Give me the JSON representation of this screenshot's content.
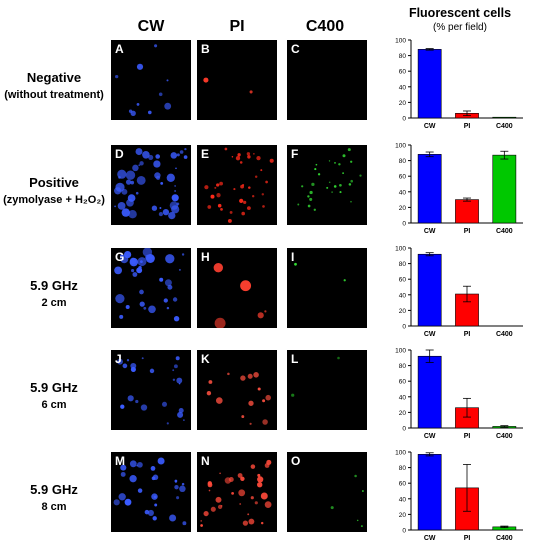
{
  "columns": {
    "cw": "CW",
    "pi": "PI",
    "c400": "C400"
  },
  "fluorescent_title": "Fluorescent cells",
  "fluorescent_subtitle": "(% per field)",
  "rows": [
    {
      "label1": "Negative",
      "label2": "(without treatment)",
      "panels": [
        "A",
        "B",
        "C"
      ]
    },
    {
      "label1": "Positive",
      "label2": "(zymolyase + H₂O₂)",
      "panels": [
        "D",
        "E",
        "F"
      ]
    },
    {
      "label1": "5.9 GHz",
      "label2": "2 cm",
      "panels": [
        "G",
        "H",
        "I"
      ]
    },
    {
      "label1": "5.9 GHz",
      "label2": "6 cm",
      "panels": [
        "J",
        "K",
        "L"
      ]
    },
    {
      "label1": "5.9 GHz",
      "label2": "8 cm",
      "panels": [
        "M",
        "N",
        "O"
      ]
    }
  ],
  "colors": {
    "cw": "#0000ff",
    "pi": "#ff0000",
    "c400": "#00c800"
  },
  "chart_data": [
    {
      "type": "bar",
      "categories": [
        "CW",
        "PI",
        "C400"
      ],
      "values": [
        88,
        6,
        1
      ],
      "errors": [
        1,
        3,
        0
      ],
      "ylim": [
        0,
        100
      ],
      "yticks": [
        0,
        20,
        40,
        60,
        80,
        100
      ]
    },
    {
      "type": "bar",
      "categories": [
        "CW",
        "PI",
        "C400"
      ],
      "values": [
        88,
        30,
        87
      ],
      "errors": [
        3,
        2,
        5
      ],
      "ylim": [
        0,
        100
      ],
      "yticks": [
        0,
        20,
        40,
        60,
        80,
        100
      ]
    },
    {
      "type": "bar",
      "categories": [
        "CW",
        "PI",
        "C400"
      ],
      "values": [
        92,
        41,
        0
      ],
      "errors": [
        2,
        10,
        0
      ],
      "ylim": [
        0,
        100
      ],
      "yticks": [
        0,
        20,
        40,
        60,
        80,
        100
      ]
    },
    {
      "type": "bar",
      "categories": [
        "CW",
        "PI",
        "C400"
      ],
      "values": [
        92,
        26,
        2
      ],
      "errors": [
        8,
        12,
        1
      ],
      "ylim": [
        0,
        100
      ],
      "yticks": [
        0,
        20,
        40,
        60,
        80,
        100
      ]
    },
    {
      "type": "bar",
      "categories": [
        "CW",
        "PI",
        "C400"
      ],
      "values": [
        97,
        54,
        4
      ],
      "errors": [
        2,
        30,
        1
      ],
      "ylim": [
        0,
        100
      ],
      "yticks": [
        0,
        20,
        40,
        60,
        80,
        100
      ]
    }
  ]
}
